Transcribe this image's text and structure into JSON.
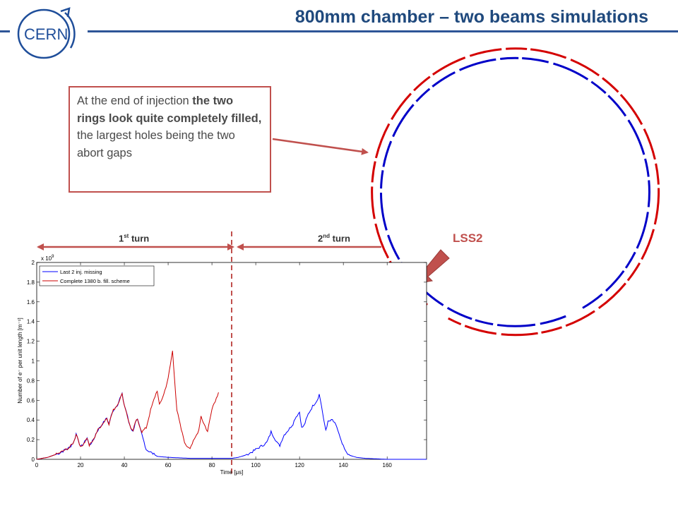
{
  "header": {
    "title": "800mm chamber – two beams simulations",
    "logo_text": "CERN"
  },
  "callout": {
    "part1": "At the end of injection ",
    "part2_bold": "the two rings look quite completely filled,",
    "part3": " the largest holes being the two abort gaps"
  },
  "turns": {
    "first_main": "1",
    "first_sup": "st",
    "first_rest": " turn",
    "second_main": "2",
    "second_sup": "nd",
    "second_rest": " turn"
  },
  "ring_label": "LSS2",
  "colors": {
    "title": "#1f497d",
    "accent_red": "#c0504d",
    "ring_red": "#d40000",
    "ring_blue": "#0000c8",
    "series_blue": "#0000ff",
    "series_red": "#cc0000"
  },
  "chart_data": {
    "type": "line",
    "xlabel": "Time [μs]",
    "ylabel": "Number of e⁻ per unit length [m⁻¹]",
    "y_scale_label": "x 10",
    "y_scale_exp": "9",
    "xlim": [
      0,
      178
    ],
    "ylim": [
      0,
      2
    ],
    "xticks": [
      0,
      20,
      40,
      60,
      80,
      100,
      120,
      140,
      160
    ],
    "yticks": [
      0,
      0.2,
      0.4,
      0.6,
      0.8,
      1,
      1.2,
      1.4,
      1.6,
      1.8,
      2
    ],
    "ytick_labels": [
      "0",
      "0.2",
      "0.4",
      "0.6",
      "0.8",
      "1",
      "1.2",
      "1.4",
      "1.6",
      "1.8",
      "2"
    ],
    "divider_x": 89,
    "series": [
      {
        "name": "Last 2 inj. missing",
        "color": "#0000ff",
        "x": [
          0,
          5,
          10,
          15,
          17,
          18,
          19,
          20,
          22,
          23,
          24,
          26,
          27,
          28,
          30,
          32,
          33,
          34,
          35,
          37,
          38,
          39,
          40,
          41,
          42,
          43,
          44,
          45,
          46,
          48,
          50,
          55,
          60,
          70,
          80,
          89,
          92,
          95,
          98,
          100,
          103,
          105,
          106,
          107,
          108,
          110,
          111,
          112,
          113,
          115,
          117,
          118,
          120,
          121,
          122,
          124,
          126,
          128,
          129,
          130,
          131,
          132,
          133,
          135,
          137,
          139,
          141,
          143,
          146,
          150,
          160,
          170,
          178
        ],
        "y": [
          0,
          0.02,
          0.06,
          0.12,
          0.18,
          0.26,
          0.2,
          0.12,
          0.18,
          0.22,
          0.14,
          0.2,
          0.26,
          0.3,
          0.36,
          0.42,
          0.36,
          0.44,
          0.5,
          0.56,
          0.62,
          0.66,
          0.55,
          0.48,
          0.38,
          0.32,
          0.28,
          0.38,
          0.4,
          0.25,
          0.1,
          0.03,
          0.02,
          0.01,
          0.01,
          0.01,
          0.02,
          0.04,
          0.07,
          0.1,
          0.14,
          0.17,
          0.22,
          0.28,
          0.24,
          0.16,
          0.14,
          0.2,
          0.25,
          0.3,
          0.36,
          0.42,
          0.48,
          0.32,
          0.34,
          0.46,
          0.54,
          0.6,
          0.66,
          0.55,
          0.4,
          0.3,
          0.38,
          0.4,
          0.33,
          0.18,
          0.08,
          0.04,
          0.02,
          0.01,
          0,
          0,
          0
        ]
      },
      {
        "name": "Complete 1380 b. fill. scheme",
        "color": "#cc0000",
        "x": [
          0,
          5,
          10,
          15,
          17,
          18,
          19,
          20,
          22,
          23,
          24,
          26,
          27,
          28,
          30,
          32,
          33,
          34,
          35,
          37,
          38,
          39,
          40,
          41,
          42,
          43,
          44,
          45,
          46,
          48,
          50,
          52,
          54,
          55,
          56,
          58,
          60,
          61,
          62,
          63,
          64,
          66,
          68,
          70,
          72,
          74,
          75,
          76,
          78,
          80,
          82,
          83
        ],
        "y": [
          0,
          0.02,
          0.06,
          0.12,
          0.18,
          0.26,
          0.2,
          0.12,
          0.18,
          0.22,
          0.14,
          0.2,
          0.26,
          0.3,
          0.36,
          0.42,
          0.36,
          0.44,
          0.5,
          0.56,
          0.62,
          0.66,
          0.55,
          0.48,
          0.38,
          0.32,
          0.28,
          0.38,
          0.4,
          0.28,
          0.32,
          0.5,
          0.64,
          0.7,
          0.55,
          0.66,
          0.82,
          0.96,
          1.1,
          0.8,
          0.5,
          0.3,
          0.14,
          0.12,
          0.2,
          0.3,
          0.44,
          0.38,
          0.28,
          0.52,
          0.62,
          0.68
        ]
      }
    ]
  }
}
